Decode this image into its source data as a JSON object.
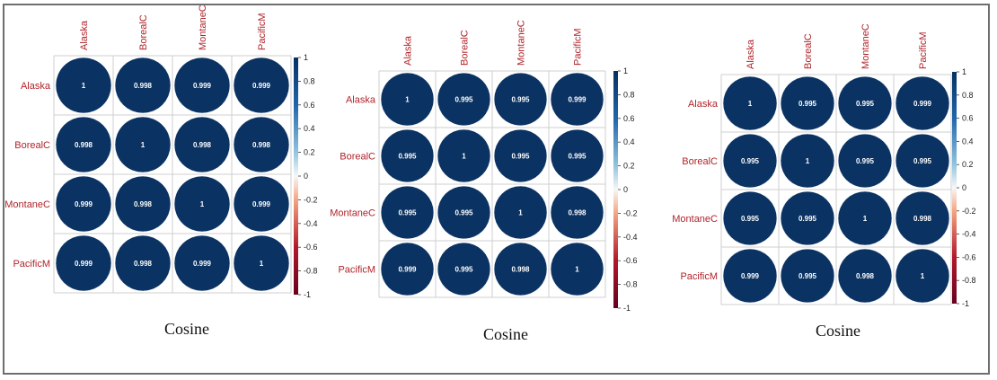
{
  "chart_data": [
    {
      "type": "heatmap",
      "variables": [
        "Alaska",
        "BorealC",
        "MontaneC",
        "PacificM"
      ],
      "matrix": [
        [
          "1",
          "0.998",
          "0.999",
          "0.999"
        ],
        [
          "0.998",
          "1",
          "0.998",
          "0.998"
        ],
        [
          "0.999",
          "0.998",
          "1",
          "0.999"
        ],
        [
          "0.999",
          "0.998",
          "0.999",
          "1"
        ]
      ],
      "colorbar": {
        "range": [
          -1,
          1
        ],
        "ticks": [
          "1",
          "0.8",
          "0.6",
          "0.4",
          "0.2",
          "0",
          "-0.2",
          "-0.4",
          "-0.6",
          "-0.8",
          "-1"
        ]
      },
      "caption": "Cosine"
    },
    {
      "type": "heatmap",
      "variables": [
        "Alaska",
        "BorealC",
        "MontaneC",
        "PacificM"
      ],
      "matrix": [
        [
          "1",
          "0.995",
          "0.995",
          "0.999"
        ],
        [
          "0.995",
          "1",
          "0.995",
          "0.995"
        ],
        [
          "0.995",
          "0.995",
          "1",
          "0.998"
        ],
        [
          "0.999",
          "0.995",
          "0.998",
          "1"
        ]
      ],
      "colorbar": {
        "range": [
          -1,
          1
        ],
        "ticks": [
          "1",
          "0.8",
          "0.6",
          "0.4",
          "0.2",
          "0",
          "-0.2",
          "-0.4",
          "-0.6",
          "-0.8",
          "-1"
        ]
      },
      "caption": "Cosine"
    },
    {
      "type": "heatmap",
      "variables": [
        "Alaska",
        "BorealC",
        "MontaneC",
        "PacificM"
      ],
      "matrix": [
        [
          "1",
          "0.995",
          "0.995",
          "0.999"
        ],
        [
          "0.995",
          "1",
          "0.995",
          "0.995"
        ],
        [
          "0.995",
          "0.995",
          "1",
          "0.998"
        ],
        [
          "0.999",
          "0.995",
          "0.998",
          "1"
        ]
      ],
      "colorbar": {
        "range": [
          -1,
          1
        ],
        "ticks": [
          "1",
          "0.8",
          "0.6",
          "0.4",
          "0.2",
          "0",
          "-0.2",
          "-0.4",
          "-0.6",
          "-0.8",
          "-1"
        ]
      },
      "caption": "Cosine"
    }
  ],
  "colors": {
    "circle_fill": "#0a3262",
    "label_color": "#b0242a",
    "grid_color": "#cfcfcf",
    "value_text": "#ffffff",
    "scale_top": "#053061",
    "scale_mid": "#f7f7f7",
    "scale_bottom": "#67001f"
  }
}
